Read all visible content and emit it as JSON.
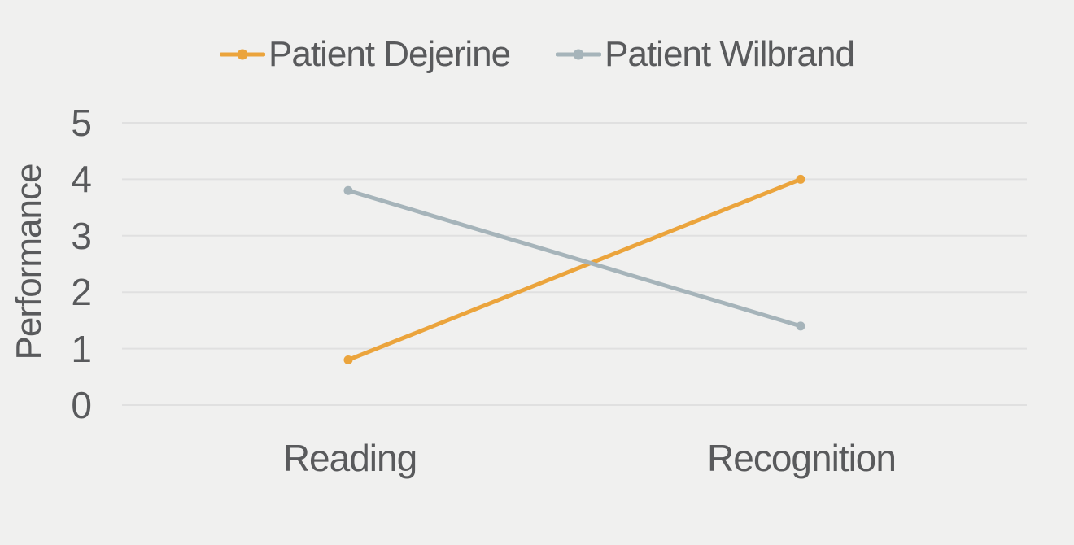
{
  "chart_data": {
    "type": "line",
    "title": "",
    "categories": [
      "Reading",
      "Recognition"
    ],
    "series": [
      {
        "name": "Patient Dejerine",
        "color": "#EBA43C",
        "values": [
          0.8,
          4
        ]
      },
      {
        "name": "Patient Wilbrand",
        "color": "#A6B4BA",
        "values": [
          3.8,
          1.4
        ]
      }
    ],
    "xlabel": "",
    "ylabel": "Performance",
    "ylim": [
      0,
      5
    ],
    "yticks": [
      0,
      1,
      2,
      3,
      4,
      5
    ],
    "grid": "horizontal",
    "legend_position": "top-center",
    "marker": "circle"
  },
  "styles": {
    "background": "#F0F0EF",
    "text_color": "#595A5C",
    "gridline_color": "#E0E0E0"
  }
}
